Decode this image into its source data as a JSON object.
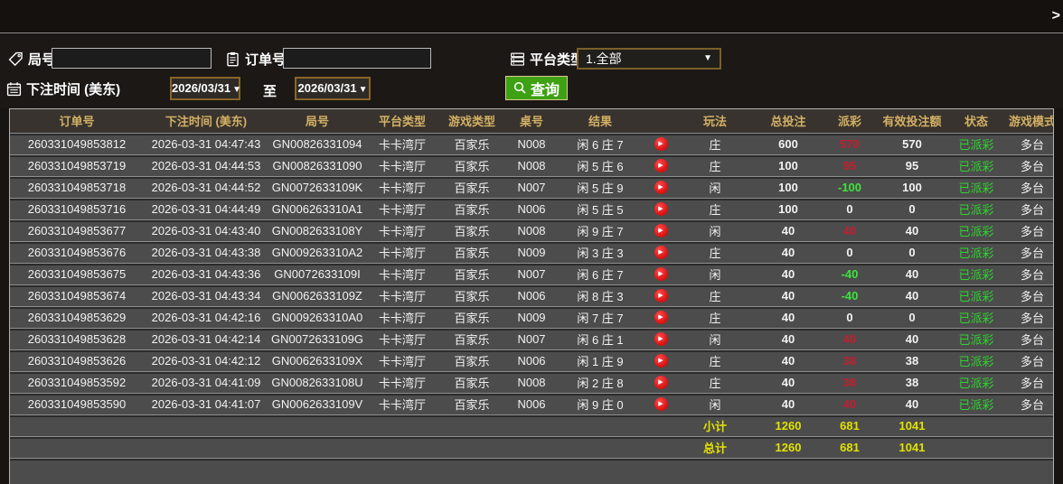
{
  "top_bar": {
    "collapse_glyph": ">"
  },
  "filters": {
    "round_label": "局号",
    "round_value": "",
    "order_label": "订单号",
    "order_value": "",
    "platform_label": "平台类型",
    "platform_value": "1.全部",
    "time_label": "下注时间 (美东)",
    "date_from": "2026/03/31",
    "to_label": "至",
    "date_to": "2026/03/31",
    "dropdown_glyph": "▼",
    "query_label": "查询"
  },
  "icons": {
    "round_field": "tag-icon",
    "order_field": "clipboard-icon",
    "platform_field": "server-list-icon",
    "time_field": "calendar-icon",
    "query_button": "magnifier-icon",
    "replay": "play-circle-icon",
    "collapse": "chevron-right-icon"
  },
  "colors": {
    "header_text": "#d3b064",
    "payout_win": "#c41e2e",
    "payout_loss": "#3ce43c",
    "status_paid": "#2fd32f",
    "summary_text": "#e2e200",
    "query_green": "#3ea114",
    "date_border": "#8a6426"
  },
  "table": {
    "play_glyph": "▶",
    "columns": [
      "订单号",
      "下注时间 (美东)",
      "局号",
      "平台类型",
      "游戏类型",
      "桌号",
      "结果",
      "",
      "玩法",
      "总投注",
      "派彩",
      "有效投注额",
      "状态",
      "游戏模式"
    ],
    "rows": [
      {
        "order": "260331049853812",
        "time": "2026-03-31 04:47:43",
        "round": "GN00826331094",
        "platform": "卡卡湾厅",
        "game": "百家乐",
        "table_no": "N008",
        "result": "闲 6 庄 7",
        "bet": "庄",
        "total": "600",
        "payout": "570",
        "valid": "570",
        "status": "已派彩",
        "mode": "多台"
      },
      {
        "order": "260331049853719",
        "time": "2026-03-31 04:44:53",
        "round": "GN00826331090",
        "platform": "卡卡湾厅",
        "game": "百家乐",
        "table_no": "N008",
        "result": "闲 5 庄 6",
        "bet": "庄",
        "total": "100",
        "payout": "95",
        "valid": "95",
        "status": "已派彩",
        "mode": "多台"
      },
      {
        "order": "260331049853718",
        "time": "2026-03-31 04:44:52",
        "round": "GN0072633109K",
        "platform": "卡卡湾厅",
        "game": "百家乐",
        "table_no": "N007",
        "result": "闲 5 庄 9",
        "bet": "闲",
        "total": "100",
        "payout": "-100",
        "valid": "100",
        "status": "已派彩",
        "mode": "多台"
      },
      {
        "order": "260331049853716",
        "time": "2026-03-31 04:44:49",
        "round": "GN006263310A1",
        "platform": "卡卡湾厅",
        "game": "百家乐",
        "table_no": "N006",
        "result": "闲 5 庄 5",
        "bet": "庄",
        "total": "100",
        "payout": "0",
        "valid": "0",
        "status": "已派彩",
        "mode": "多台"
      },
      {
        "order": "260331049853677",
        "time": "2026-03-31 04:43:40",
        "round": "GN0082633108Y",
        "platform": "卡卡湾厅",
        "game": "百家乐",
        "table_no": "N008",
        "result": "闲 9 庄 7",
        "bet": "闲",
        "total": "40",
        "payout": "40",
        "valid": "40",
        "status": "已派彩",
        "mode": "多台"
      },
      {
        "order": "260331049853676",
        "time": "2026-03-31 04:43:38",
        "round": "GN009263310A2",
        "platform": "卡卡湾厅",
        "game": "百家乐",
        "table_no": "N009",
        "result": "闲 3 庄 3",
        "bet": "庄",
        "total": "40",
        "payout": "0",
        "valid": "0",
        "status": "已派彩",
        "mode": "多台"
      },
      {
        "order": "260331049853675",
        "time": "2026-03-31 04:43:36",
        "round": "GN0072633109I",
        "platform": "卡卡湾厅",
        "game": "百家乐",
        "table_no": "N007",
        "result": "闲 6 庄 7",
        "bet": "闲",
        "total": "40",
        "payout": "-40",
        "valid": "40",
        "status": "已派彩",
        "mode": "多台"
      },
      {
        "order": "260331049853674",
        "time": "2026-03-31 04:43:34",
        "round": "GN0062633109Z",
        "platform": "卡卡湾厅",
        "game": "百家乐",
        "table_no": "N006",
        "result": "闲 8 庄 3",
        "bet": "庄",
        "total": "40",
        "payout": "-40",
        "valid": "40",
        "status": "已派彩",
        "mode": "多台"
      },
      {
        "order": "260331049853629",
        "time": "2026-03-31 04:42:16",
        "round": "GN009263310A0",
        "platform": "卡卡湾厅",
        "game": "百家乐",
        "table_no": "N009",
        "result": "闲 7 庄 7",
        "bet": "庄",
        "total": "40",
        "payout": "0",
        "valid": "0",
        "status": "已派彩",
        "mode": "多台"
      },
      {
        "order": "260331049853628",
        "time": "2026-03-31 04:42:14",
        "round": "GN0072633109G",
        "platform": "卡卡湾厅",
        "game": "百家乐",
        "table_no": "N007",
        "result": "闲 6 庄 1",
        "bet": "闲",
        "total": "40",
        "payout": "40",
        "valid": "40",
        "status": "已派彩",
        "mode": "多台"
      },
      {
        "order": "260331049853626",
        "time": "2026-03-31 04:42:12",
        "round": "GN0062633109X",
        "platform": "卡卡湾厅",
        "game": "百家乐",
        "table_no": "N006",
        "result": "闲 1 庄 9",
        "bet": "庄",
        "total": "40",
        "payout": "38",
        "valid": "38",
        "status": "已派彩",
        "mode": "多台"
      },
      {
        "order": "260331049853592",
        "time": "2026-03-31 04:41:09",
        "round": "GN0082633108U",
        "platform": "卡卡湾厅",
        "game": "百家乐",
        "table_no": "N008",
        "result": "闲 2 庄 8",
        "bet": "庄",
        "total": "40",
        "payout": "38",
        "valid": "38",
        "status": "已派彩",
        "mode": "多台"
      },
      {
        "order": "260331049853590",
        "time": "2026-03-31 04:41:07",
        "round": "GN0062633109V",
        "platform": "卡卡湾厅",
        "game": "百家乐",
        "table_no": "N006",
        "result": "闲 9 庄 0",
        "bet": "闲",
        "total": "40",
        "payout": "40",
        "valid": "40",
        "status": "已派彩",
        "mode": "多台"
      }
    ],
    "subtotal": {
      "label": "小计",
      "total": "1260",
      "payout": "681",
      "valid": "1041"
    },
    "grand_total": {
      "label": "总计",
      "total": "1260",
      "payout": "681",
      "valid": "1041"
    }
  }
}
